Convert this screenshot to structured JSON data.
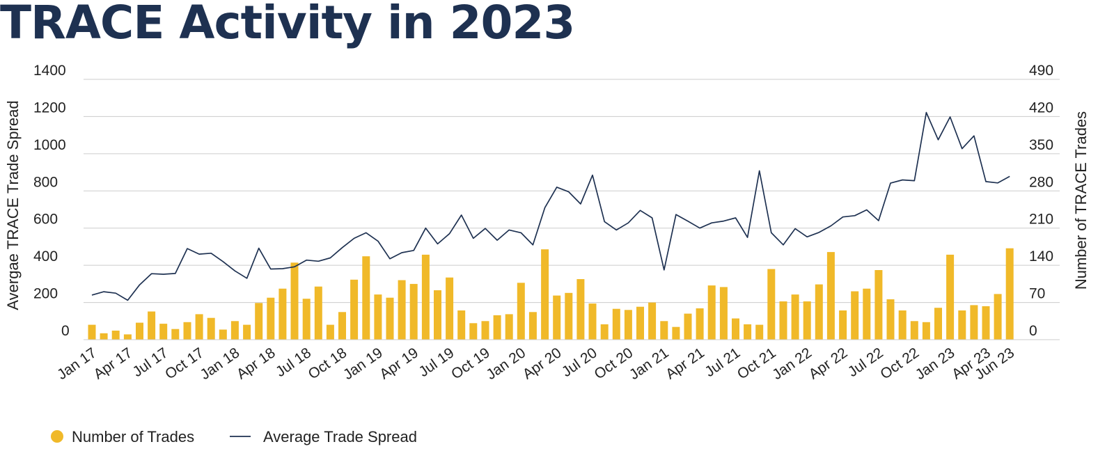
{
  "page": {
    "title": "TRACE Activity in 2023"
  },
  "colors": {
    "bar": "#F0B929",
    "line": "#1E3151",
    "grid": "#CCCCCC",
    "title": "#1E3151"
  },
  "chart_data": {
    "type": "bar+line",
    "title": "TRACE Activity in 2023",
    "ylabel_left": "Avergae TRACE Trade Spread",
    "ylabel_right": "Number of TRACE Trades",
    "ylim_left": [
      0,
      1400
    ],
    "ylim_right": [
      0,
      490
    ],
    "yticks_left": [
      "0",
      "200",
      "400",
      "600",
      "800",
      "1000",
      "1200",
      "1400"
    ],
    "yticks_right": [
      "0",
      "70",
      "140",
      "210",
      "280",
      "350",
      "420",
      "490"
    ],
    "grid": true,
    "legend_position": "bottom-left",
    "x_tick_labels": [
      "Jan 17",
      "Apr 17",
      "Jul 17",
      "Oct 17",
      "Jan 18",
      "Apr 18",
      "Jul 18",
      "Oct 18",
      "Jan 19",
      "Apr 19",
      "Jul 19",
      "Oct 19",
      "Jan 20",
      "Apr 20",
      "Jul 20",
      "Oct 20",
      "Jan 21",
      "Apr 21",
      "Jul 21",
      "Oct 21",
      "Jan 22",
      "Apr 22",
      "Jul 22",
      "Oct 22",
      "Jan 23",
      "Apr 23",
      "Jun 23"
    ],
    "x": [
      "2017-01",
      "2017-02",
      "2017-03",
      "2017-04",
      "2017-05",
      "2017-06",
      "2017-07",
      "2017-08",
      "2017-09",
      "2017-10",
      "2017-11",
      "2017-12",
      "2018-01",
      "2018-02",
      "2018-03",
      "2018-04",
      "2018-05",
      "2018-06",
      "2018-07",
      "2018-08",
      "2018-09",
      "2018-10",
      "2018-11",
      "2018-12",
      "2019-01",
      "2019-02",
      "2019-03",
      "2019-04",
      "2019-05",
      "2019-06",
      "2019-07",
      "2019-08",
      "2019-09",
      "2019-10",
      "2019-11",
      "2019-12",
      "2020-01",
      "2020-02",
      "2020-03",
      "2020-04",
      "2020-05",
      "2020-06",
      "2020-07",
      "2020-08",
      "2020-09",
      "2020-10",
      "2020-11",
      "2020-12",
      "2021-01",
      "2021-02",
      "2021-03",
      "2021-04",
      "2021-05",
      "2021-06",
      "2021-07",
      "2021-08",
      "2021-09",
      "2021-10",
      "2021-11",
      "2021-12",
      "2022-01",
      "2022-02",
      "2022-03",
      "2022-04",
      "2022-05",
      "2022-06",
      "2022-07",
      "2022-08",
      "2022-09",
      "2022-10",
      "2022-11",
      "2022-12",
      "2023-01",
      "2023-02",
      "2023-03",
      "2023-04",
      "2023-05",
      "2023-06"
    ],
    "series": [
      {
        "name": "Number of Trades",
        "type": "bar",
        "axis": "right",
        "values": [
          28,
          12,
          17,
          10,
          32,
          53,
          30,
          20,
          33,
          48,
          41,
          19,
          35,
          28,
          69,
          79,
          96,
          145,
          77,
          100,
          28,
          52,
          113,
          157,
          85,
          79,
          112,
          105,
          160,
          93,
          117,
          55,
          31,
          35,
          46,
          48,
          107,
          52,
          170,
          83,
          88,
          114,
          68,
          29,
          58,
          56,
          62,
          70,
          35,
          24,
          49,
          59,
          102,
          99,
          40,
          29,
          28,
          133,
          72,
          85,
          72,
          104,
          165,
          55,
          91,
          96,
          131,
          76,
          55,
          35,
          33,
          60,
          160,
          55,
          65,
          63,
          86,
          172
        ]
      },
      {
        "name": "Average Trade Spread",
        "type": "line",
        "axis": "left",
        "values": [
          240,
          258,
          250,
          212,
          295,
          355,
          352,
          356,
          490,
          460,
          465,
          420,
          370,
          330,
          492,
          380,
          382,
          392,
          428,
          422,
          440,
          495,
          545,
          575,
          530,
          435,
          468,
          480,
          600,
          515,
          570,
          670,
          545,
          598,
          535,
          590,
          575,
          510,
          710,
          820,
          795,
          730,
          885,
          635,
          590,
          628,
          695,
          655,
          375,
          673,
          637,
          600,
          628,
          638,
          655,
          550,
          908,
          575,
          510,
          597,
          553,
          577,
          612,
          660,
          667,
          698,
          640,
          842,
          859,
          855,
          1222,
          1075,
          1198,
          1027,
          1096,
          850,
          843,
          878
        ]
      }
    ]
  }
}
